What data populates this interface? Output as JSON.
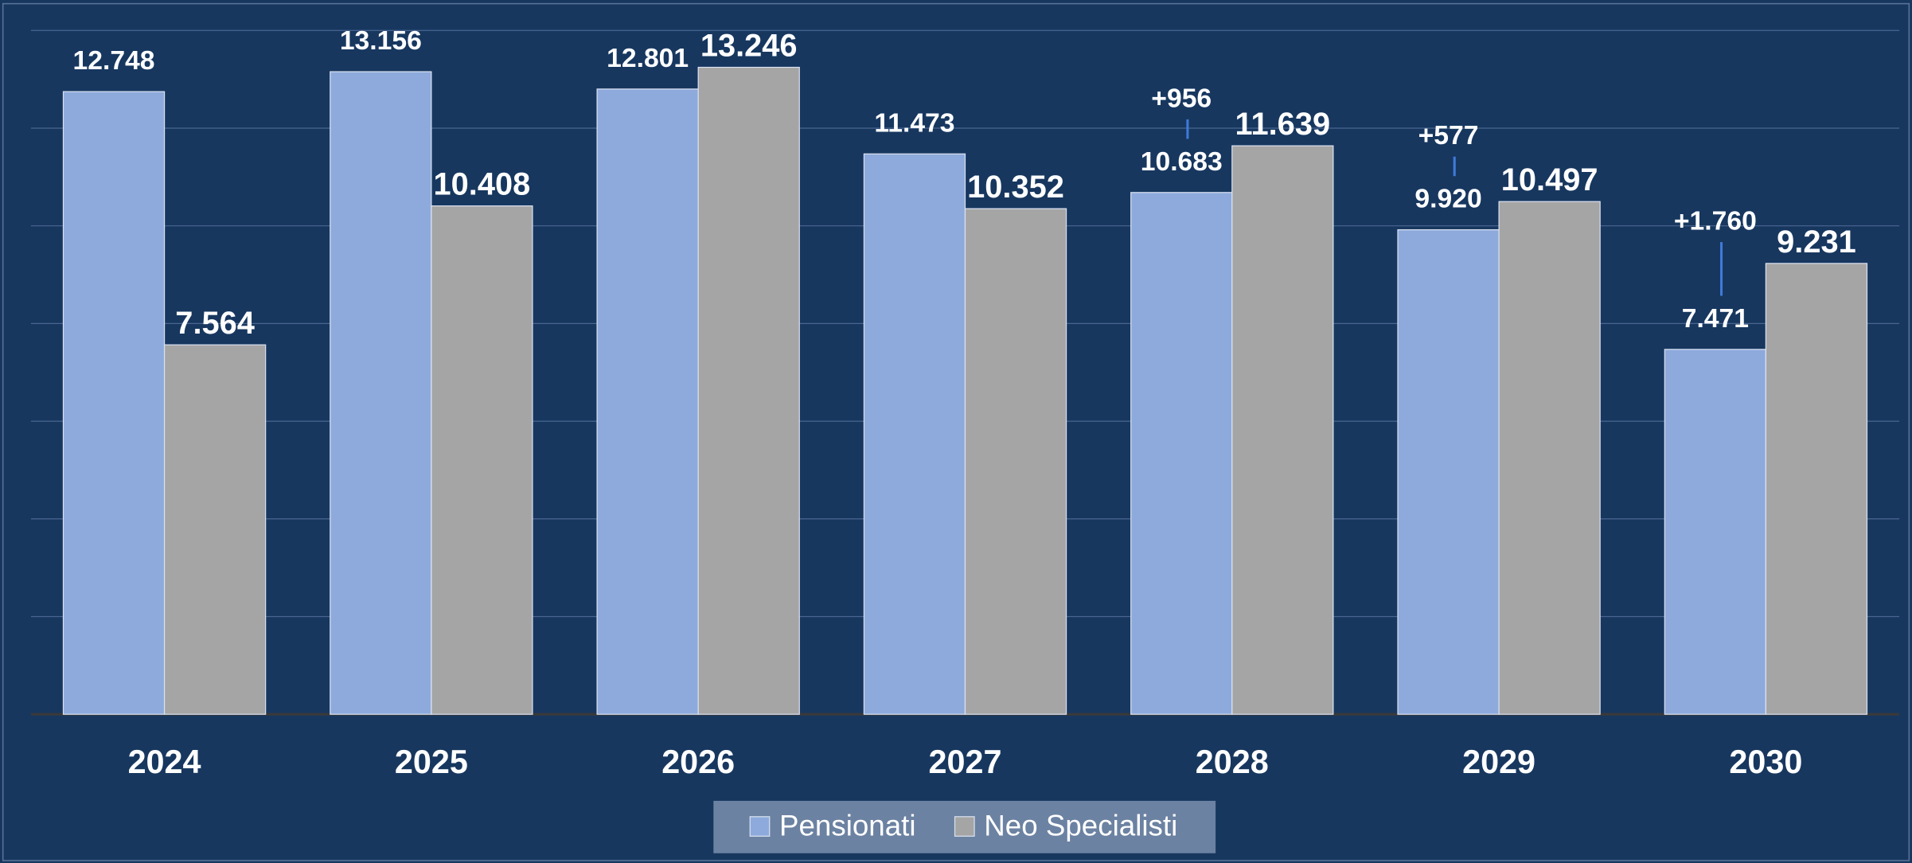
{
  "chart_data": {
    "type": "bar",
    "categories": [
      "2024",
      "2025",
      "2026",
      "2027",
      "2028",
      "2029",
      "2030"
    ],
    "series": [
      {
        "name": "Pensionati",
        "color": "#8eaadc",
        "values": [
          12748,
          13156,
          12801,
          11473,
          10683,
          9920,
          7471
        ],
        "value_labels": [
          "12.748",
          "13.156",
          "12.801",
          "11.473",
          "10.683",
          "9.920",
          "7.471"
        ]
      },
      {
        "name": "Neo Specialisti",
        "color": "#a5a5a5",
        "values": [
          7564,
          10408,
          13246,
          10352,
          11639,
          10497,
          9231
        ],
        "value_labels": [
          "7.564",
          "10.408",
          "13.246",
          "10.352",
          "11.639",
          "10.497",
          "9.231"
        ]
      }
    ],
    "annotations": [
      "+956",
      "+577",
      "+1.760"
    ],
    "ylim": [
      0,
      14000
    ],
    "yticks": [
      0,
      2000,
      4000,
      6000,
      8000,
      10000,
      12000,
      14000
    ],
    "grid": true,
    "legend": "bottom"
  }
}
